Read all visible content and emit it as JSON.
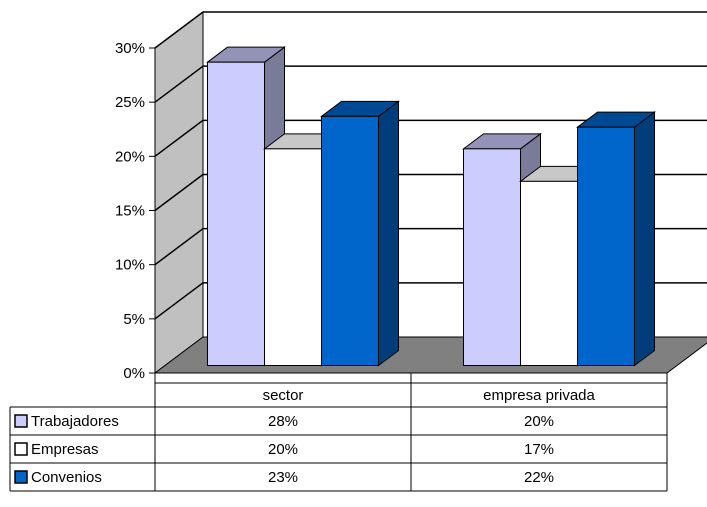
{
  "chart_data": {
    "type": "bar",
    "title": "",
    "xlabel": "",
    "ylabel": "",
    "categories": [
      "sector",
      "empresa privada"
    ],
    "series": [
      {
        "name": "Trabajadores",
        "values": [
          28,
          20
        ],
        "color": "#CCCCFF"
      },
      {
        "name": "Empresas",
        "values": [
          20,
          17
        ],
        "color": "#FFFFFF"
      },
      {
        "name": "Convenios",
        "values": [
          23,
          22
        ],
        "color": "#0066CC"
      }
    ],
    "value_labels": [
      [
        "28%",
        "20%"
      ],
      [
        "20%",
        "17%"
      ],
      [
        "23%",
        "22%"
      ]
    ],
    "yticks": [
      0,
      5,
      10,
      15,
      20,
      25,
      30
    ],
    "ytick_labels": [
      "0%",
      "5%",
      "10%",
      "15%",
      "20%",
      "25%",
      "30%"
    ],
    "ylim": [
      0,
      30
    ],
    "grid": true,
    "legend": "data-table",
    "wall_color": "#C0C0C0",
    "floor_color": "#808080"
  }
}
